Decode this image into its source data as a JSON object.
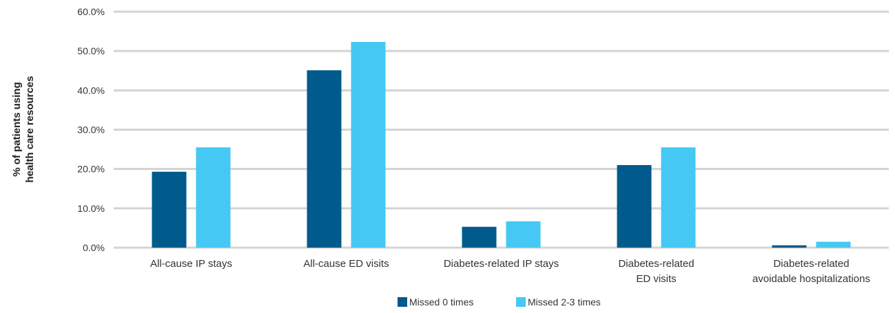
{
  "chart_data": {
    "type": "bar",
    "ylabel_lines": [
      "% of patients using",
      "health care resources"
    ],
    "categories": [
      [
        "All-cause IP stays"
      ],
      [
        "All-cause ED visits"
      ],
      [
        "Diabetes-related IP stays"
      ],
      [
        "Diabetes-related",
        "ED visits"
      ],
      [
        "Diabetes-related",
        "avoidable hospitalizations"
      ]
    ],
    "series": [
      {
        "name": "Missed 0 times",
        "color": "#005a8c",
        "values": [
          19.3,
          45.1,
          5.3,
          21.0,
          0.6
        ]
      },
      {
        "name": "Missed 2-3 times",
        "color": "#45c8f3",
        "values": [
          25.5,
          52.3,
          6.7,
          25.5,
          1.5
        ]
      }
    ],
    "yticks": [
      "0.0%",
      "10.0%",
      "20.0%",
      "30.0%",
      "40.0%",
      "50.0%",
      "60.0%"
    ],
    "ylim": [
      0,
      60
    ],
    "grid": true,
    "gridline_color": "#d3d3d3",
    "legend_position": "bottom-center"
  }
}
